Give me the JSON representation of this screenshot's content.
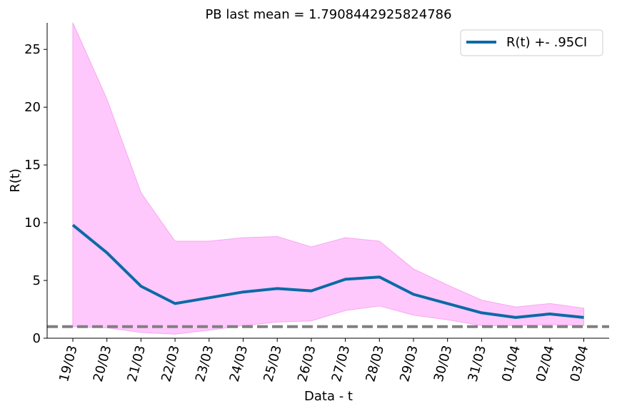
{
  "chart_data": {
    "type": "line",
    "title": "PB last mean = 1.7908442925824786",
    "xlabel": "Data - t",
    "ylabel": "R(t)",
    "categories": [
      "19/03",
      "20/03",
      "21/03",
      "22/03",
      "23/03",
      "24/03",
      "25/03",
      "26/03",
      "27/03",
      "28/03",
      "29/03",
      "30/03",
      "31/03",
      "01/04",
      "02/04",
      "03/04"
    ],
    "ylim": [
      0,
      27.3
    ],
    "yticks": [
      0,
      5,
      10,
      15,
      20,
      25
    ],
    "grid": false,
    "legend_position": "top-right",
    "series": [
      {
        "name": "R(t) +- .95CI",
        "values": [
          9.8,
          7.4,
          4.5,
          3.0,
          3.5,
          4.0,
          4.3,
          4.1,
          5.1,
          5.3,
          3.8,
          3.0,
          2.2,
          1.8,
          2.1,
          1.8
        ],
        "lower": [
          1.0,
          0.9,
          0.5,
          0.35,
          0.7,
          1.1,
          1.4,
          1.5,
          2.4,
          2.8,
          2.0,
          1.6,
          1.1,
          1.1,
          1.2,
          1.1
        ],
        "upper": [
          27.3,
          20.7,
          12.6,
          8.4,
          8.4,
          8.7,
          8.8,
          7.9,
          8.7,
          8.4,
          6.0,
          4.6,
          3.3,
          2.7,
          3.0,
          2.6
        ],
        "color": "#0b6aa6",
        "band_color": "#ffc8fc",
        "band_edge_color": "#f7a6f2"
      }
    ],
    "reference_line": {
      "y": 1,
      "style": "dashed",
      "color": "#808080"
    }
  }
}
